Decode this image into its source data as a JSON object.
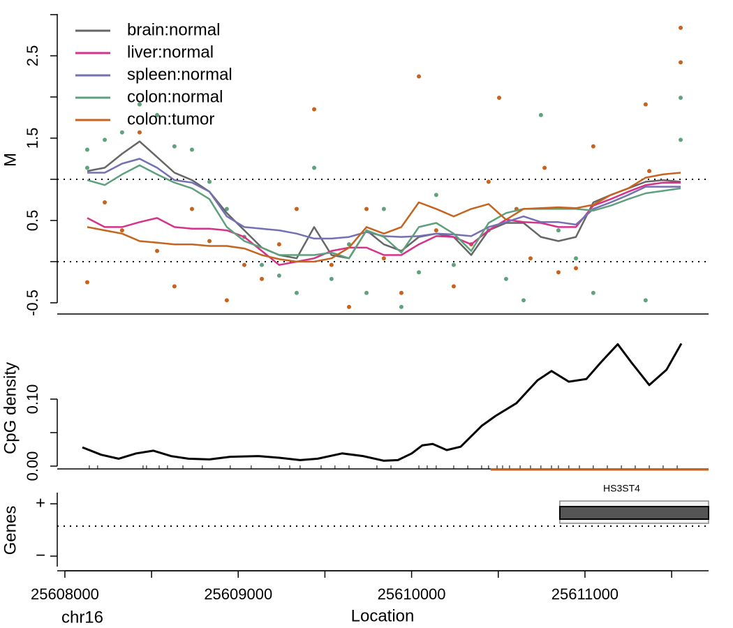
{
  "chart_data": [
    {
      "type": "line",
      "ylabel": "M",
      "xlim": [
        25607956,
        25611713
      ],
      "ylim": [
        -0.636,
        3.11
      ],
      "yticks": [
        -0.5,
        0.5,
        1.5,
        2.5
      ],
      "minor_yticks": [
        0,
        1,
        2,
        3
      ],
      "hlines": [
        0,
        1
      ],
      "legend": "top-left",
      "x": [
        25608129,
        25608230,
        25608330,
        25608431,
        25608532,
        25608632,
        25608733,
        25608834,
        25608934,
        25609035,
        25609136,
        25609236,
        25609337,
        25609438,
        25609538,
        25609639,
        25609740,
        25609840,
        25609941,
        25610042,
        25610142,
        25610243,
        25610344,
        25610444,
        25610545,
        25610646,
        25610746,
        25610847,
        25610948,
        25611048,
        25611149,
        25611250,
        25611350,
        25611451,
        25611552
      ],
      "series": [
        {
          "name": "brain:normal",
          "color": "#666666",
          "values": [
            1.1,
            1.14,
            1.31,
            1.46,
            1.27,
            1.08,
            0.99,
            0.85,
            0.59,
            0.38,
            0.17,
            0.08,
            0.04,
            0.42,
            0.08,
            0.04,
            0.38,
            0.21,
            0.13,
            0.3,
            0.34,
            0.3,
            0.08,
            0.38,
            0.47,
            0.47,
            0.3,
            0.25,
            0.3,
            0.72,
            0.81,
            0.89,
            0.97,
            0.99,
            0.97
          ]
        },
        {
          "name": "liver:normal",
          "color": "#d6328a",
          "values": [
            0.53,
            0.42,
            0.42,
            0.48,
            0.53,
            0.42,
            0.4,
            0.4,
            0.38,
            0.3,
            0.13,
            -0.04,
            0,
            0.04,
            0.13,
            0.17,
            0.17,
            0.08,
            0.08,
            0.21,
            0.31,
            0.3,
            0.21,
            0.38,
            0.51,
            0.48,
            0.47,
            0.42,
            0.42,
            0.68,
            0.76,
            0.85,
            0.93,
            0.96,
            0.96
          ]
        },
        {
          "name": "spleen:normal",
          "color": "#7570b3",
          "values": [
            1.08,
            1.08,
            1.19,
            1.25,
            1.14,
            0.99,
            0.96,
            0.85,
            0.55,
            0.42,
            0.4,
            0.38,
            0.34,
            0.28,
            0.28,
            0.3,
            0.36,
            0.31,
            0.3,
            0.31,
            0.34,
            0.33,
            0.31,
            0.42,
            0.48,
            0.55,
            0.48,
            0.48,
            0.45,
            0.64,
            0.72,
            0.81,
            0.91,
            0.91,
            0.91
          ]
        },
        {
          "name": "colon:normal",
          "color": "#5ea07c",
          "values": [
            0.99,
            0.93,
            1.06,
            1.17,
            1.06,
            0.96,
            0.89,
            0.76,
            0.42,
            0.25,
            0.17,
            0.08,
            0.08,
            0.08,
            0.11,
            0.04,
            0.38,
            0.3,
            0.11,
            0.42,
            0.47,
            0.34,
            0.13,
            0.47,
            0.59,
            0.64,
            0.64,
            0.64,
            0.64,
            0.62,
            0.68,
            0.76,
            0.83,
            0.86,
            0.89
          ]
        },
        {
          "name": "colon:tumor",
          "color": "#c6631f",
          "values": [
            0.42,
            0.38,
            0.34,
            0.25,
            0.23,
            0.21,
            0.21,
            0.19,
            0.19,
            0.16,
            0.08,
            0.03,
            0,
            0,
            0.04,
            0.17,
            0.42,
            0.34,
            0.42,
            0.72,
            0.64,
            0.55,
            0.64,
            0.7,
            0.51,
            0.64,
            0.65,
            0.66,
            0.65,
            0.69,
            0.81,
            0.89,
            1.02,
            1.06,
            1.08
          ]
        }
      ],
      "points": [
        {
          "color": "#5fa37e",
          "x": [
            25608129,
            25608129,
            25608230,
            25608330,
            25608431,
            25608532,
            25608632,
            25608733,
            25608834,
            25608934,
            25609035,
            25609136,
            25609236,
            25609337,
            25609438,
            25609538,
            25609639,
            25609740,
            25609840,
            25609941,
            25610042,
            25610142,
            25610243,
            25610444,
            25610545,
            25610646,
            25610746,
            25610847,
            25610948,
            25611048,
            25611350,
            25611552,
            25611552
          ],
          "y": [
            1.36,
            1.14,
            1.48,
            1.57,
            1.91,
            1.78,
            1.4,
            1.36,
            0.97,
            0.64,
            0.3,
            -0.04,
            -0.17,
            -0.38,
            1.14,
            -0.21,
            0.21,
            -0.38,
            0.64,
            -0.55,
            -0.13,
            0.81,
            -0.04,
            0.38,
            -0.21,
            -0.47,
            1.78,
            0.38,
            0.04,
            -0.38,
            -0.47,
            1.48,
            1.99
          ]
        },
        {
          "color": "#c8621c",
          "x": [
            25608129,
            25608230,
            25608330,
            25608431,
            25608532,
            25608632,
            25608733,
            25608834,
            25608934,
            25609035,
            25609136,
            25609236,
            25609337,
            25609438,
            25609538,
            25609639,
            25609740,
            25609840,
            25609941,
            25610042,
            25610142,
            25610243,
            25610344,
            25610444,
            25610505,
            25610605,
            25610686,
            25610767,
            25610847,
            25610948,
            25611048,
            25611350,
            25611371,
            25611552,
            25611552
          ],
          "y": [
            -0.25,
            0.72,
            0.38,
            1.57,
            0.13,
            -0.3,
            0.64,
            0.25,
            -0.47,
            -0.04,
            -0.21,
            0.21,
            0.64,
            1.85,
            -0.04,
            -0.55,
            0.64,
            0.04,
            -0.38,
            2.25,
            0.38,
            -0.3,
            0.21,
            0.97,
            1.99,
            0.64,
            0.04,
            1.14,
            -0.13,
            -0.08,
            1.4,
            1.91,
            1.1,
            2.84,
            2.42
          ]
        }
      ]
    },
    {
      "type": "line",
      "ylabel": "CpG density",
      "xlim": [
        25607956,
        25611713
      ],
      "ylim": [
        -0.00417,
        0.1854
      ],
      "yticks": [
        {
          "value": 0,
          "label": "0.00"
        },
        {
          "value": 0.1,
          "label": "0.10"
        }
      ],
      "minor_yticks": [
        0.05
      ],
      "x": [
        25608101,
        25608209,
        25608310,
        25608411,
        25608511,
        25608612,
        25608713,
        25608834,
        25608954,
        25609116,
        25609236,
        25609357,
        25609458,
        25609599,
        25609720,
        25609840,
        25609921,
        25610001,
        25610062,
        25610122,
        25610203,
        25610283,
        25610404,
        25610485,
        25610605,
        25610726,
        25610807,
        25610907,
        25611008,
        25611089,
        25611189,
        25611270,
        25611371,
        25611471,
        25611556
      ],
      "series": [
        {
          "color": "#000000",
          "values": [
            0.028,
            0.017,
            0.011,
            0.019,
            0.023,
            0.015,
            0.011,
            0.01,
            0.014,
            0.015,
            0.0125,
            0.009,
            0.011,
            0.019,
            0.015,
            0.008,
            0.009,
            0.019,
            0.031,
            0.033,
            0.024,
            0.029,
            0.06,
            0.075,
            0.094,
            0.128,
            0.142,
            0.126,
            0.13,
            0.154,
            0.182,
            0.154,
            0.121,
            0.144,
            0.183
          ]
        }
      ],
      "cpg_sites": [
        25608141,
        25608189,
        25608451,
        25608471,
        25608544,
        25608592,
        25608681,
        25608793,
        25608954,
        25609075,
        25609236,
        25609297,
        25609357,
        25609478,
        25609558,
        25609639,
        25609800,
        25609881,
        25610042,
        25610090,
        25610142,
        25610243,
        25610324,
        25610404,
        25610444,
        25610493,
        25610525,
        25610565,
        25610626,
        25610686,
        25610746,
        25610807,
        25610847,
        25610907,
        25610968,
        25611048,
        25611129,
        25611210,
        25611290,
        25611371,
        25611451,
        25611532
      ],
      "cpg_island": [
        25610456,
        25611713
      ],
      "island_color": "#c6631f"
    },
    {
      "type": "gene",
      "ylabel": "Genes",
      "xlabel": "Location",
      "chromosome": "chr16",
      "xlim": [
        25607956,
        25611713
      ],
      "xticks": [
        25608000,
        25609000,
        25610000,
        25611000
      ],
      "minor_xticks": [
        25608500,
        25609500,
        25610500,
        25611500
      ],
      "strand_labels": [
        "+",
        "−"
      ],
      "genes": [
        {
          "name": "HS3ST4",
          "start": 25610855,
          "end": 25611713
        }
      ]
    }
  ]
}
